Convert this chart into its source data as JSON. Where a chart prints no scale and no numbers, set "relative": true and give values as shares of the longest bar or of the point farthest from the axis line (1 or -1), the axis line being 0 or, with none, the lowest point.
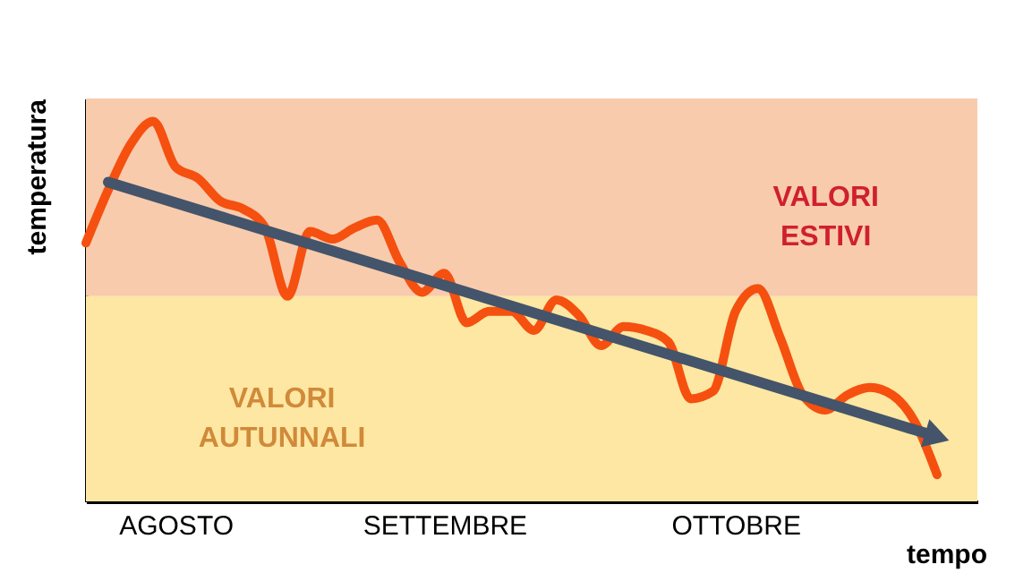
{
  "chart_data": {
    "type": "line",
    "relative": true,
    "xlabel": "tempo",
    "ylabel": "temperatura",
    "categories": [
      null,
      null,
      null,
      null,
      "AGOSTO",
      null,
      null,
      null,
      null,
      null,
      null,
      null,
      null,
      null,
      null,
      null,
      "SETTEMBRE",
      null,
      null,
      null,
      null,
      null,
      null,
      null,
      null,
      null,
      null,
      null,
      null,
      "OTTOBRE",
      null,
      null,
      null,
      null,
      null,
      null,
      null,
      null,
      null
    ],
    "series": [
      {
        "color": "#f5500f",
        "values": [
          0.68,
          0.82,
          0.94,
          1,
          0.88,
          0.85,
          0.79,
          0.77,
          0.72,
          0.54,
          0.71,
          0.69,
          0.72,
          0.74,
          0.63,
          0.55,
          0.6,
          0.47,
          0.5,
          0.5,
          0.45,
          0.53,
          0.49,
          0.41,
          0.46,
          0.45,
          0.42,
          0.27,
          0.29,
          0.5,
          0.56,
          0.43,
          0.28,
          0.24,
          0.28,
          0.3,
          0.28,
          0.21,
          0.07
        ]
      },
      {
        "color": "#44546a",
        "values": [
          null,
          0.84,
          null,
          null,
          null,
          null,
          null,
          null,
          null,
          null,
          null,
          null,
          null,
          null,
          null,
          null,
          null,
          null,
          null,
          null,
          null,
          null,
          null,
          null,
          null,
          null,
          null,
          null,
          null,
          null,
          null,
          null,
          null,
          null,
          null,
          null,
          null,
          null,
          0.17
        ]
      }
    ],
    "bands": [
      {
        "axis": "y",
        "from": 0,
        "to": 0.54,
        "label": "VALORI AUTUNNALI",
        "color": "#fde7a2"
      },
      {
        "axis": "y",
        "from": 0.54,
        "to": 1.06,
        "label": "VALORI ESTIVI",
        "color": "#f8cbad"
      }
    ]
  }
}
